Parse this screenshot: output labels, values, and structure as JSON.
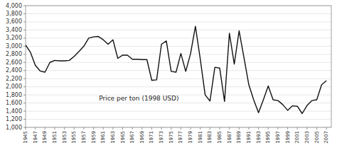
{
  "chart_data": {
    "type": "line",
    "annotation": "Price per ton (1998 USD)",
    "color": "#111111",
    "grid": true,
    "x": [
      1945,
      1946,
      1947,
      1948,
      1949,
      1950,
      1951,
      1952,
      1953,
      1954,
      1955,
      1956,
      1957,
      1958,
      1959,
      1960,
      1961,
      1962,
      1963,
      1964,
      1965,
      1966,
      1967,
      1968,
      1969,
      1970,
      1971,
      1972,
      1973,
      1974,
      1975,
      1976,
      1977,
      1978,
      1979,
      1980,
      1981,
      1982,
      1983,
      1984,
      1985,
      1986,
      1987,
      1988,
      1989,
      1990,
      1991,
      1992,
      1993,
      1994,
      1995,
      1996,
      1997,
      1998,
      1999,
      2000,
      2001,
      2002,
      2003,
      2004,
      2005,
      2006,
      2007
    ],
    "values": [
      3030,
      2850,
      2530,
      2390,
      2360,
      2600,
      2650,
      2640,
      2640,
      2650,
      2750,
      2870,
      3000,
      3200,
      3230,
      3240,
      3160,
      3050,
      3160,
      2700,
      2780,
      2780,
      2680,
      2680,
      2670,
      2670,
      2160,
      2170,
      3050,
      3130,
      2380,
      2360,
      2820,
      2380,
      2820,
      3490,
      2680,
      1800,
      1650,
      2480,
      2460,
      1640,
      3320,
      2560,
      3380,
      2720,
      2050,
      1680,
      1360,
      1680,
      2020,
      1680,
      1660,
      1560,
      1420,
      1530,
      1520,
      1340,
      1540,
      1660,
      1680,
      2050,
      2150
    ],
    "xlim": [
      1945,
      2008
    ],
    "xticks": [
      1945,
      1947,
      1949,
      1951,
      1953,
      1955,
      1957,
      1959,
      1961,
      1963,
      1965,
      1967,
      1969,
      1971,
      1973,
      1975,
      1977,
      1979,
      1981,
      1983,
      1985,
      1987,
      1989,
      1991,
      1993,
      1995,
      1997,
      1999,
      2001,
      2003,
      2005,
      2007
    ],
    "ylim": [
      1000,
      4000
    ],
    "yticks": [
      {
        "value": 1000,
        "label": "1,000"
      },
      {
        "value": 1200,
        "label": "1,200"
      },
      {
        "value": 1400,
        "label": "1,400"
      },
      {
        "value": 1600,
        "label": "1,600"
      },
      {
        "value": 1800,
        "label": "1,800"
      },
      {
        "value": 2000,
        "label": "2,000"
      },
      {
        "value": 2200,
        "label": "2,200"
      },
      {
        "value": 2400,
        "label": "2,400"
      },
      {
        "value": 2600,
        "label": "2,600"
      },
      {
        "value": 2800,
        "label": "2,800"
      },
      {
        "value": 3000,
        "label": "3,000"
      },
      {
        "value": 3200,
        "label": "3,200"
      },
      {
        "value": 3400,
        "label": "3,400"
      },
      {
        "value": 3600,
        "label": "3,600"
      },
      {
        "value": 3800,
        "label": "3,800"
      },
      {
        "value": 4000,
        "label": "4,000"
      }
    ]
  }
}
